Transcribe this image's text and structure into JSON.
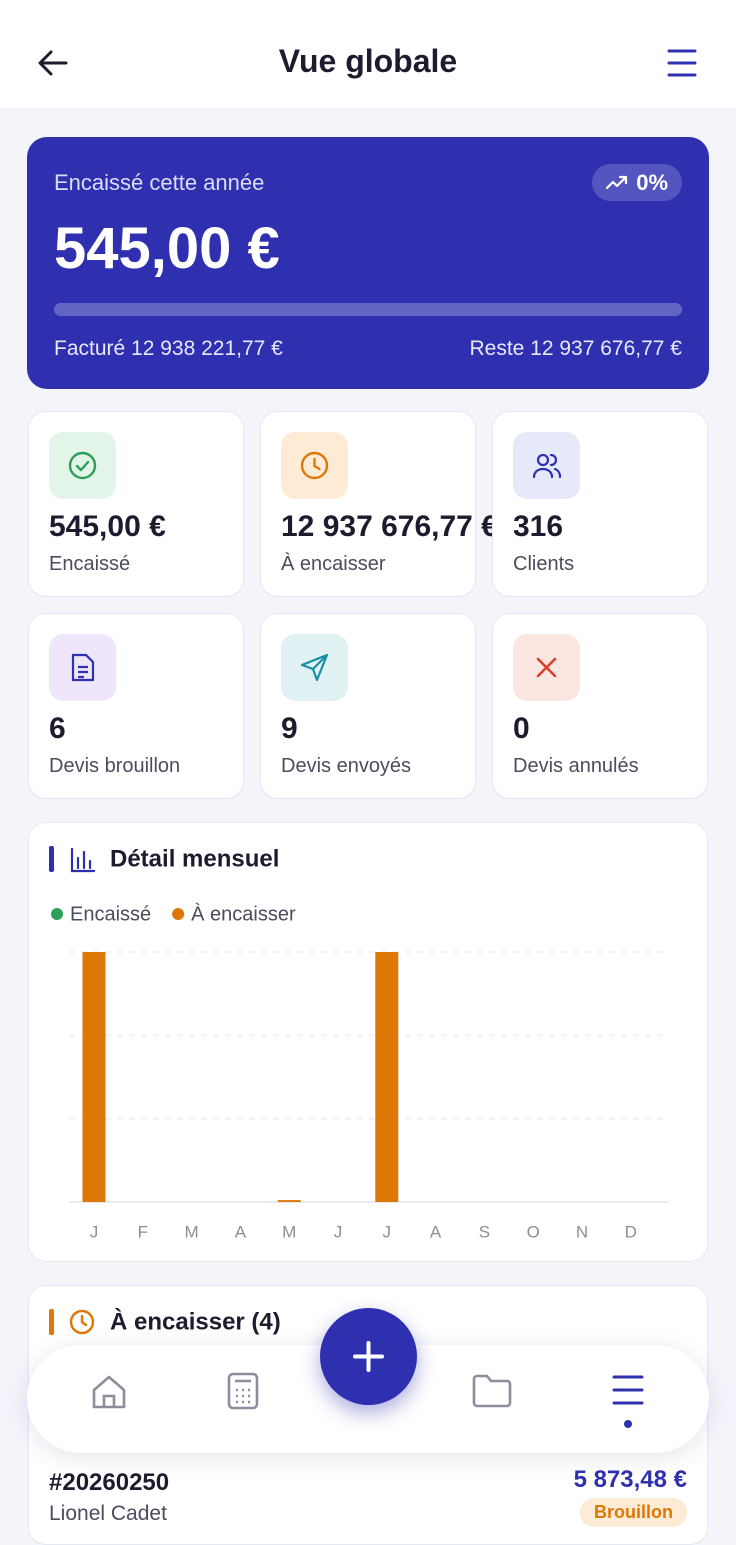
{
  "header": {
    "title": "Vue globale"
  },
  "summary": {
    "label": "Encaissé cette année",
    "trend": "0%",
    "amount": "545,00 €",
    "billed": "Facturé 12 938 221,77 €",
    "remaining": "Reste 12 937 676,77 €"
  },
  "stats": [
    {
      "value": "545,00 €",
      "label": "Encaissé"
    },
    {
      "value": "12 937 676,77 €",
      "label": "À encaisser"
    },
    {
      "value": "316",
      "label": "Clients"
    },
    {
      "value": "6",
      "label": "Devis brouillon"
    },
    {
      "value": "9",
      "label": "Devis envoyés"
    },
    {
      "value": "0",
      "label": "Devis annulés"
    }
  ],
  "chart_data": {
    "type": "bar",
    "title": "Détail mensuel",
    "categories": [
      "J",
      "F",
      "M",
      "A",
      "M",
      "J",
      "J",
      "A",
      "S",
      "O",
      "N",
      "D"
    ],
    "series": [
      {
        "name": "Encaissé",
        "color": "#2e9e5b",
        "values": [
          0,
          0,
          0,
          0,
          0,
          0,
          0,
          0,
          0,
          0,
          0,
          0
        ]
      },
      {
        "name": "À encaisser",
        "color": "#dd7706",
        "values": [
          6600000,
          0,
          0,
          0,
          50000,
          0,
          6600000,
          0,
          0,
          0,
          0,
          0
        ]
      }
    ],
    "ylim": [
      0,
      6600000
    ],
    "yticks": [
      0,
      2200000,
      4400000,
      6600000
    ],
    "grid": true
  },
  "pending": {
    "title": "À encaisser (4)",
    "items": [
      {
        "number": "#20260250",
        "client": "Lionel Cadet",
        "amount": "5 873,48 €",
        "status": "Brouillon"
      }
    ]
  }
}
